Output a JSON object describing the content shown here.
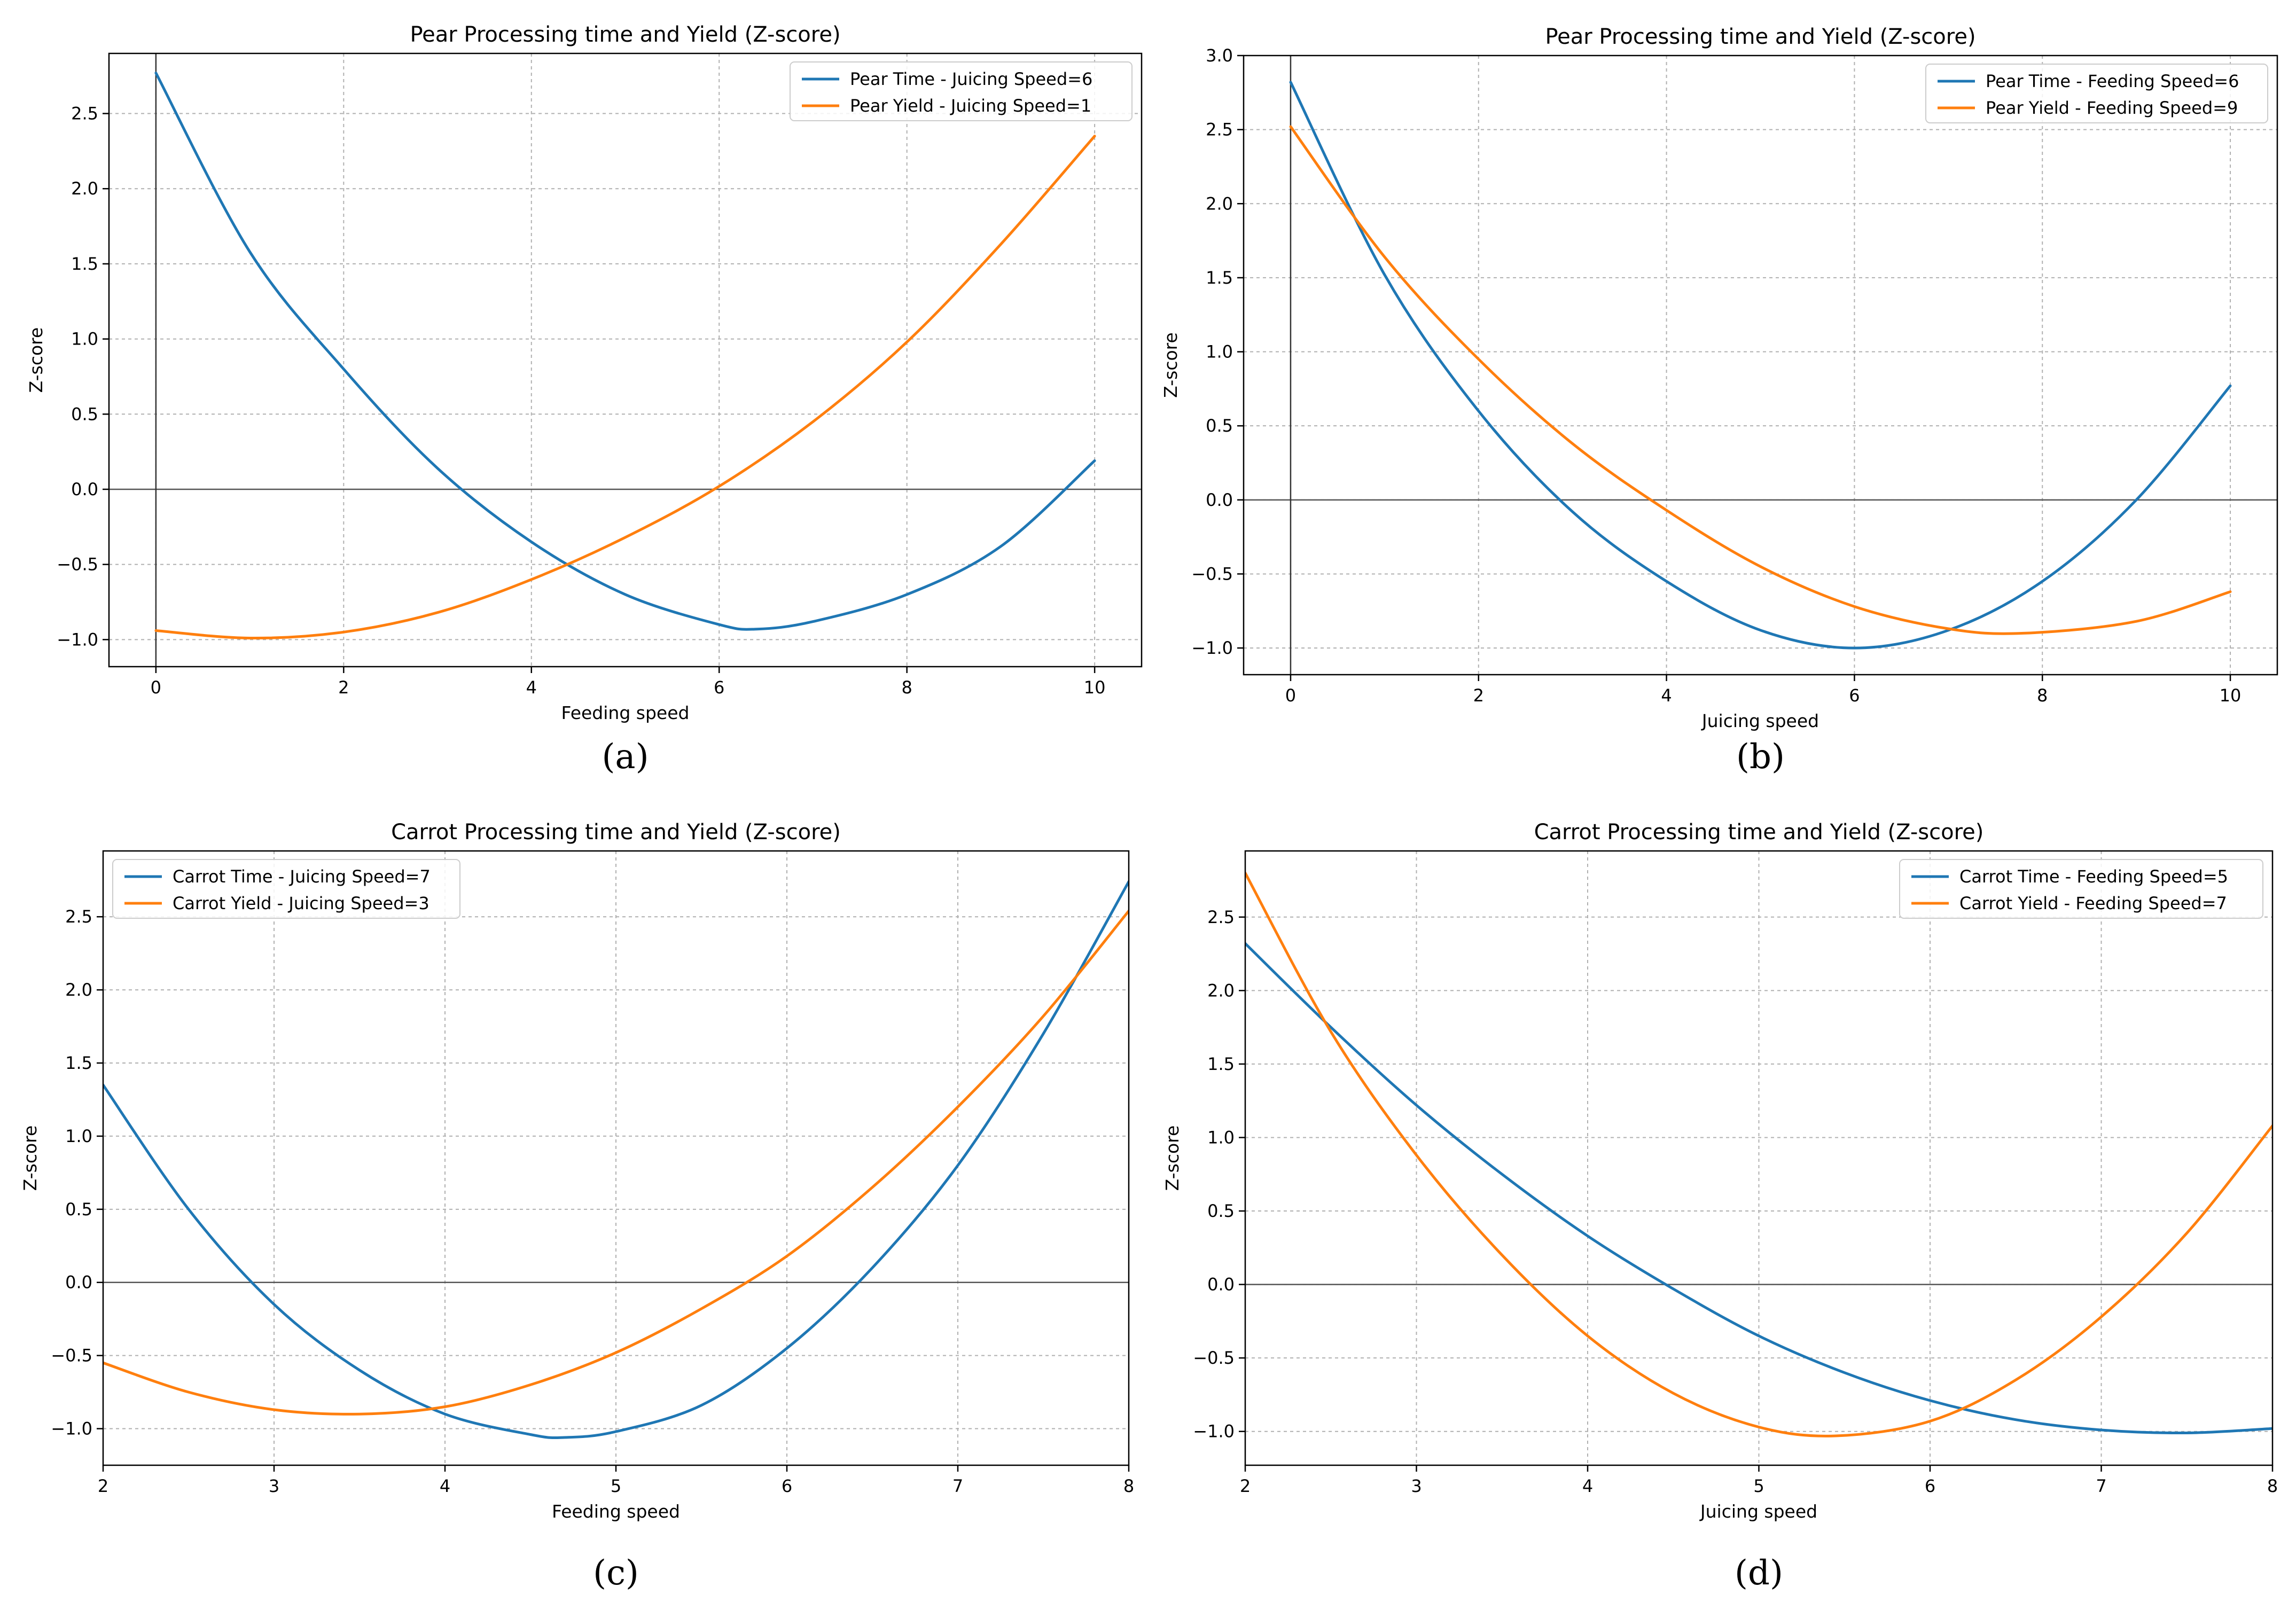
{
  "chart_data": [
    {
      "id": "a",
      "type": "line",
      "panel_label": "(a)",
      "title": "Pear Processing time and Yield (Z-score)",
      "xlabel": "Feeding speed",
      "ylabel": "Z-score",
      "xlim": [
        -0.5,
        10.5
      ],
      "ylim": [
        -1.18,
        2.9
      ],
      "xticks": [
        0,
        2,
        4,
        6,
        8,
        10
      ],
      "yticks": [
        -1.0,
        -0.5,
        0.0,
        0.5,
        1.0,
        1.5,
        2.0,
        2.5
      ],
      "grid": true,
      "axhline": 0,
      "axvline": 0,
      "legend_position": "top-right",
      "series": [
        {
          "name": "Pear Time - Juicing Speed=6",
          "color": "#1f77b4",
          "x": [
            0,
            1,
            2,
            3,
            4,
            5,
            6,
            6.4,
            7,
            8,
            9,
            10
          ],
          "y": [
            2.77,
            1.58,
            0.8,
            0.14,
            -0.35,
            -0.7,
            -0.9,
            -0.93,
            -0.88,
            -0.7,
            -0.38,
            0.19
          ]
        },
        {
          "name": "Pear Yield - Juicing Speed=1",
          "color": "#ff7f0e",
          "x": [
            0,
            1,
            2,
            3,
            4,
            5,
            6,
            7,
            8,
            9,
            10
          ],
          "y": [
            -0.94,
            -0.99,
            -0.95,
            -0.82,
            -0.6,
            -0.32,
            0.02,
            0.45,
            0.98,
            1.63,
            2.35
          ]
        }
      ]
    },
    {
      "id": "b",
      "type": "line",
      "panel_label": "(b)",
      "title": "Pear Processing time and Yield (Z-score)",
      "xlabel": "Juicing speed",
      "ylabel": "Z-score",
      "xlim": [
        -0.5,
        10.5
      ],
      "ylim": [
        -1.18,
        3.0
      ],
      "xticks": [
        0,
        2,
        4,
        6,
        8,
        10
      ],
      "yticks": [
        -1.0,
        -0.5,
        0.0,
        0.5,
        1.0,
        1.5,
        2.0,
        2.5,
        3.0
      ],
      "grid": true,
      "axhline": 0,
      "axvline": 0,
      "legend_position": "top-right",
      "series": [
        {
          "name": "Pear Time - Feeding Speed=6",
          "color": "#1f77b4",
          "x": [
            0,
            1,
            2,
            3,
            4,
            5,
            6,
            7,
            8,
            9,
            10
          ],
          "y": [
            2.82,
            1.52,
            0.6,
            -0.08,
            -0.55,
            -0.88,
            -1.0,
            -0.88,
            -0.55,
            0.0,
            0.77
          ]
        },
        {
          "name": "Pear Yield - Feeding Speed=9",
          "color": "#ff7f0e",
          "x": [
            0,
            1,
            2,
            3,
            4,
            5,
            6,
            7,
            7.8,
            9,
            10
          ],
          "y": [
            2.52,
            1.64,
            0.95,
            0.38,
            -0.07,
            -0.45,
            -0.72,
            -0.87,
            -0.9,
            -0.82,
            -0.62
          ]
        }
      ]
    },
    {
      "id": "c",
      "type": "line",
      "panel_label": "(c)",
      "title": "Carrot Processing time and Yield (Z-score)",
      "xlabel": "Feeding speed",
      "ylabel": "Z-score",
      "xlim": [
        2,
        8
      ],
      "ylim": [
        -1.25,
        2.95
      ],
      "xticks": [
        2,
        3,
        4,
        5,
        6,
        7,
        8
      ],
      "yticks": [
        -1.0,
        -0.5,
        0.0,
        0.5,
        1.0,
        1.5,
        2.0,
        2.5
      ],
      "grid": true,
      "axhline": 0,
      "legend_position": "top-left",
      "series": [
        {
          "name": "Carrot Time - Juicing Speed=7",
          "color": "#1f77b4",
          "x": [
            2,
            2.5,
            3,
            3.5,
            4,
            4.5,
            4.7,
            5,
            5.5,
            6,
            6.5,
            7,
            7.5,
            8
          ],
          "y": [
            1.35,
            0.5,
            -0.15,
            -0.6,
            -0.9,
            -1.04,
            -1.06,
            -1.02,
            -0.84,
            -0.45,
            0.1,
            0.8,
            1.7,
            2.74
          ]
        },
        {
          "name": "Carrot Yield - Juicing Speed=3",
          "color": "#ff7f0e",
          "x": [
            2,
            2.5,
            3,
            3.5,
            4,
            4.5,
            5,
            5.5,
            6,
            6.5,
            7,
            7.5,
            8
          ],
          "y": [
            -0.55,
            -0.75,
            -0.87,
            -0.9,
            -0.85,
            -0.7,
            -0.48,
            -0.18,
            0.18,
            0.65,
            1.2,
            1.82,
            2.54
          ]
        }
      ]
    },
    {
      "id": "d",
      "type": "line",
      "panel_label": "(d)",
      "title": "Carrot Processing time and Yield (Z-score)",
      "xlabel": "Juicing speed",
      "ylabel": "Z-score",
      "xlim": [
        2,
        8
      ],
      "ylim": [
        -1.23,
        2.95
      ],
      "xticks": [
        2,
        3,
        4,
        5,
        6,
        7,
        8
      ],
      "yticks": [
        -1.0,
        -0.5,
        0.0,
        0.5,
        1.0,
        1.5,
        2.0,
        2.5
      ],
      "grid": true,
      "axhline": 0,
      "legend_position": "top-right",
      "series": [
        {
          "name": "Carrot Time - Feeding Speed=5",
          "color": "#1f77b4",
          "x": [
            2,
            2.5,
            3,
            3.5,
            4,
            4.5,
            5,
            5.5,
            6,
            6.5,
            7,
            7.5,
            8
          ],
          "y": [
            2.32,
            1.75,
            1.22,
            0.75,
            0.33,
            -0.03,
            -0.35,
            -0.6,
            -0.79,
            -0.92,
            -0.99,
            -1.01,
            -0.98
          ]
        },
        {
          "name": "Carrot Yield - Feeding Speed=7",
          "color": "#ff7f0e",
          "x": [
            2,
            2.5,
            3,
            3.5,
            4,
            4.5,
            5,
            5.45,
            6,
            6.5,
            7,
            7.5,
            8
          ],
          "y": [
            2.8,
            1.72,
            0.88,
            0.2,
            -0.35,
            -0.74,
            -0.97,
            -1.03,
            -0.93,
            -0.65,
            -0.22,
            0.35,
            1.08
          ]
        }
      ]
    }
  ]
}
